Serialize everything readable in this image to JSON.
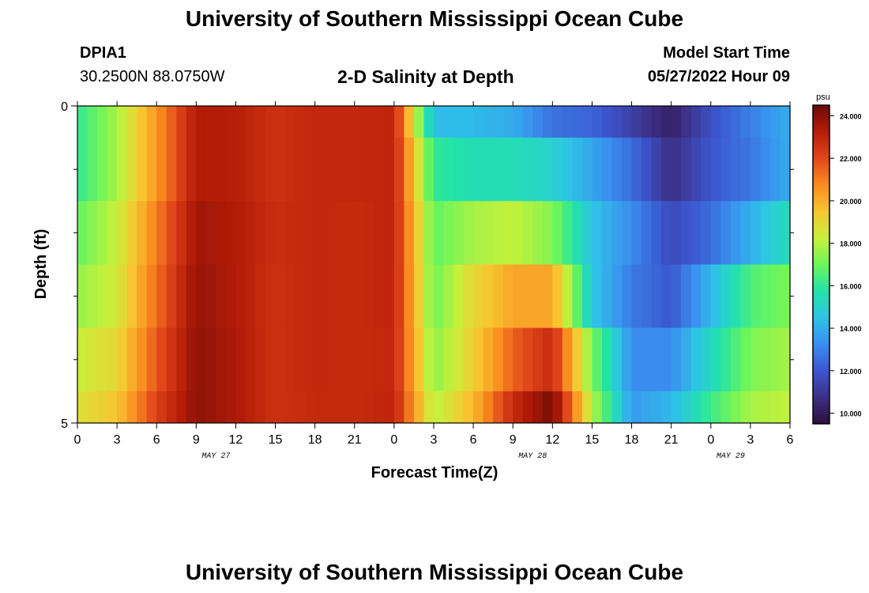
{
  "header": {
    "title": "University of Southern Mississippi Ocean Cube",
    "station_id": "DPIA1",
    "coordinates": "30.2500N  88.0750W",
    "plot_title": "2-D Salinity at Depth",
    "model_start_label": "Model Start Time",
    "model_start_value": "05/27/2022 Hour 09"
  },
  "footer": {
    "title": "University of Southern Mississippi Ocean Cube"
  },
  "chart_data": {
    "type": "heatmap",
    "title": "2-D Salinity at Depth",
    "xlabel": "Forecast Time(Z)",
    "ylabel": "Depth (ft)",
    "x_tick_labels": [
      "0",
      "3",
      "6",
      "9",
      "12",
      "15",
      "18",
      "21",
      "0",
      "3",
      "6",
      "9",
      "12",
      "15",
      "18",
      "21",
      "0",
      "3",
      "6"
    ],
    "x_date_labels": [
      {
        "label": "MAY 27",
        "tick_index": 3.5
      },
      {
        "label": "MAY 28",
        "tick_index": 11.5
      },
      {
        "label": "MAY 29",
        "tick_index": 16.5
      }
    ],
    "y_tick_labels": [
      "0",
      "5"
    ],
    "ylim": [
      0,
      5
    ],
    "colorbar": {
      "unit": "psu",
      "min": 9.5,
      "max": 24.5,
      "ticks": [
        "24.000",
        "22.000",
        "20.000",
        "18.000",
        "16.000",
        "14.000",
        "12.000",
        "10.000"
      ]
    },
    "x_hours_from_start": [
      0,
      3,
      6,
      9,
      12,
      15,
      18,
      21,
      24,
      27,
      30,
      33,
      36,
      39,
      42,
      45,
      48,
      51,
      54
    ],
    "layer_depth_ranges_ft": [
      [
        0,
        0.5
      ],
      [
        0.5,
        1.5
      ],
      [
        1.5,
        2.5
      ],
      [
        2.5,
        3.5
      ],
      [
        3.5,
        4.5
      ],
      [
        4.5,
        5
      ]
    ],
    "salinity_psu": [
      [
        16.0,
        17.8,
        20.5,
        23.3,
        23.2,
        22.6,
        22.9,
        22.9,
        23.0,
        14.3,
        14.3,
        13.9,
        12.6,
        12.3,
        11.3,
        10.2,
        11.8,
        12.9,
        14.0
      ],
      [
        16.0,
        17.8,
        20.5,
        23.3,
        23.2,
        22.6,
        22.9,
        22.9,
        23.0,
        16.0,
        15.5,
        15.5,
        15.0,
        13.8,
        12.5,
        10.7,
        12.0,
        12.7,
        14.0
      ],
      [
        16.8,
        18.3,
        21.0,
        23.6,
        23.3,
        22.7,
        22.9,
        22.8,
        23.0,
        16.8,
        17.8,
        18.2,
        17.3,
        14.5,
        13.2,
        11.6,
        12.5,
        14.0,
        15.5
      ],
      [
        17.5,
        18.5,
        21.3,
        23.8,
        23.3,
        22.6,
        22.9,
        22.8,
        23.0,
        17.0,
        19.0,
        20.2,
        20.2,
        14.6,
        12.8,
        12.0,
        14.2,
        16.5,
        17.2
      ],
      [
        18.3,
        19.0,
        21.7,
        23.9,
        23.4,
        22.6,
        22.9,
        22.8,
        22.9,
        17.4,
        19.2,
        21.5,
        22.8,
        17.2,
        13.2,
        13.2,
        15.3,
        17.2,
        17.8
      ],
      [
        18.7,
        19.5,
        22.2,
        23.9,
        23.4,
        22.6,
        22.8,
        22.8,
        23.0,
        18.0,
        19.8,
        22.8,
        24.3,
        18.0,
        13.5,
        14.2,
        16.2,
        17.8,
        18.2
      ]
    ]
  }
}
